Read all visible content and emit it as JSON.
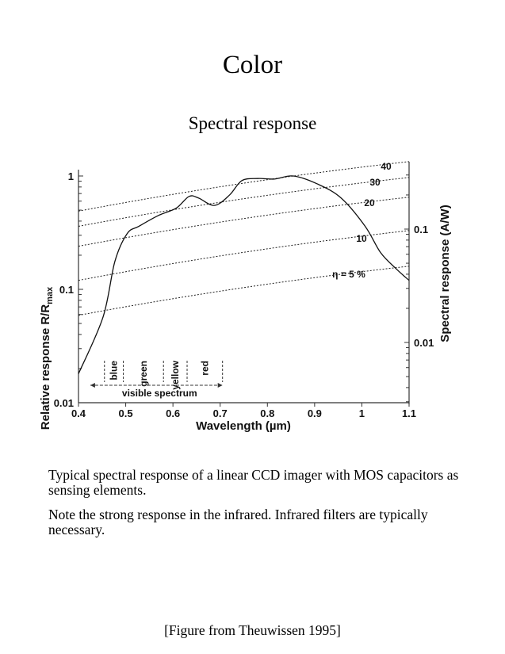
{
  "page": {
    "title": "Color",
    "subtitle": "Spectral response",
    "caption_1": "Typical spectral response of a linear CCD imager with MOS capacitors as sensing elements.",
    "caption_2": "Note the strong response in the infrared.  Infrared filters are typically necessary.",
    "source": "[Figure from Theuwissen 1995]"
  },
  "chart_data": {
    "type": "line",
    "title": "Spectral response",
    "xlabel": "Wavelength (µm)",
    "ylabel_main": "Relative response R/R",
    "ylabel_sub": "max",
    "ylabel_right": "Spectral response (A/W)",
    "xlim": [
      0.4,
      1.1
    ],
    "ylim": [
      0.01,
      1
    ],
    "yscale": "log",
    "x_ticks": [
      0.4,
      0.5,
      0.6,
      0.7,
      0.8,
      0.9,
      1,
      1.1
    ],
    "x_tick_labels": [
      "0.4",
      "0.5",
      "0.6",
      "0.7",
      "0.8",
      "0.9",
      "1",
      "1.1"
    ],
    "y_tick_labels": [
      "1",
      "0.1",
      "0.01"
    ],
    "y_ticks": [
      1,
      0.1,
      0.01
    ],
    "right_axis_ticks": [
      0.1,
      0.01
    ],
    "right_axis_tick_labels": [
      "0.1",
      "0.01"
    ],
    "series": [
      {
        "name": "CCD relative response",
        "style": "solid",
        "x": [
          0.4,
          0.452,
          0.477,
          0.503,
          0.528,
          0.57,
          0.607,
          0.634,
          0.654,
          0.688,
          0.72,
          0.746,
          0.78,
          0.815,
          0.855,
          0.906,
          0.956,
          1.007,
          1.04,
          1.074,
          1.1
        ],
        "y": [
          0.018,
          0.057,
          0.176,
          0.31,
          0.36,
          0.45,
          0.52,
          0.66,
          0.64,
          0.55,
          0.68,
          0.91,
          0.95,
          0.94,
          1.0,
          0.85,
          0.64,
          0.36,
          0.21,
          0.15,
          0.12
        ]
      }
    ],
    "efficiency_lines": [
      {
        "label": "40",
        "y_at_x_start": 0.49,
        "y_at_x_end": 1.34
      },
      {
        "label": "30",
        "y_at_x_start": 0.36,
        "y_at_x_end": 0.97
      },
      {
        "label": "20",
        "y_at_x_start": 0.24,
        "y_at_x_end": 0.65
      },
      {
        "label": "10",
        "y_at_x_start": 0.12,
        "y_at_x_end": 0.33
      },
      {
        "label": "η = 5 %",
        "y_at_x_start": 0.059,
        "y_at_x_end": 0.16
      }
    ],
    "bands": [
      {
        "label": "blue",
        "from": 0.455,
        "to": 0.495
      },
      {
        "label": "green",
        "from": 0.495,
        "to": 0.58
      },
      {
        "label": "yellow",
        "from": 0.58,
        "to": 0.63
      },
      {
        "label": "red",
        "from": 0.63,
        "to": 0.705
      }
    ],
    "visible_range_label": "visible spectrum",
    "visible_range": [
      0.425,
      0.705
    ],
    "grid": false
  }
}
